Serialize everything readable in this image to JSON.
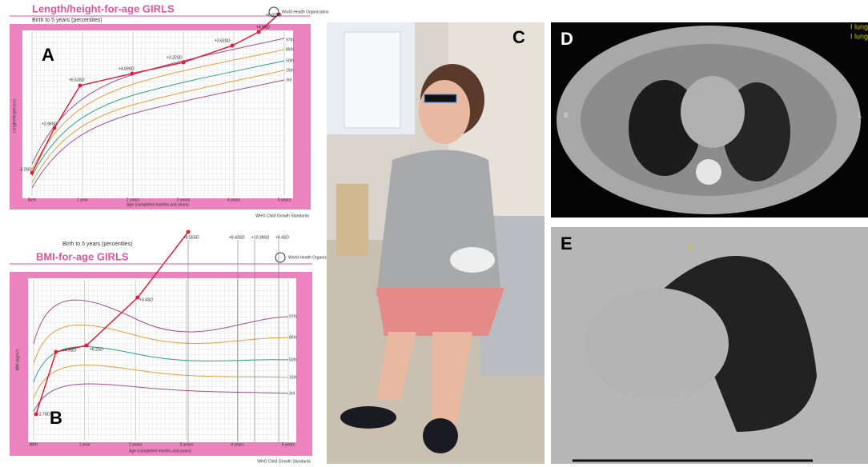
{
  "panel_a": {
    "label": "A",
    "title": "Length/height-for-age GIRLS",
    "subtitle": "Birth to 5 years (percentiles)",
    "logo": "World Health Organization",
    "y_axis": "Length/Height (cm)",
    "x_axis": "Age (completed months and years)",
    "x_ticks": [
      "Birth",
      "1 year",
      "2 years",
      "3 years",
      "4 years",
      "5 years"
    ],
    "percentiles": [
      "97th",
      "85th",
      "50th",
      "15th",
      "3rd"
    ],
    "sd_labels": [
      "-2.0SD",
      "+2.96SD",
      "+6.53SD",
      "+4.69SD",
      "+3.22SD",
      "+3.62SD",
      "+4.9SD",
      "+0.87SD"
    ],
    "footer": "WHO Child Growth Standards"
  },
  "panel_b": {
    "label": "B",
    "title": "BMI-for-age GIRLS",
    "subtitle": "Birth to 5 years (percentiles)",
    "logo": "World Health Organization",
    "y_axis": "BMI (kg/m²)",
    "x_axis": "Age (completed months and years)",
    "x_ticks": [
      "Birth",
      "1 year",
      "2 years",
      "3 years",
      "4 years",
      "5 years"
    ],
    "percentiles": [
      "97th",
      "85th",
      "50th",
      "15th",
      "3rd"
    ],
    "sd_labels": [
      "-1.7SD",
      "+4.9SD",
      "+6.2SD",
      "+3.4SD",
      "+8.55SD",
      "+8.43SD",
      "+10.39SD",
      "+8.4SD"
    ],
    "footer": "WHO Child Growth Standards"
  },
  "panel_c": {
    "label": "C"
  },
  "panel_d": {
    "label": "D",
    "side_left": "R",
    "side_right": "L",
    "corner": [
      "I lung",
      "I lung"
    ]
  },
  "panel_e": {
    "label": "E",
    "marker": "5"
  }
}
